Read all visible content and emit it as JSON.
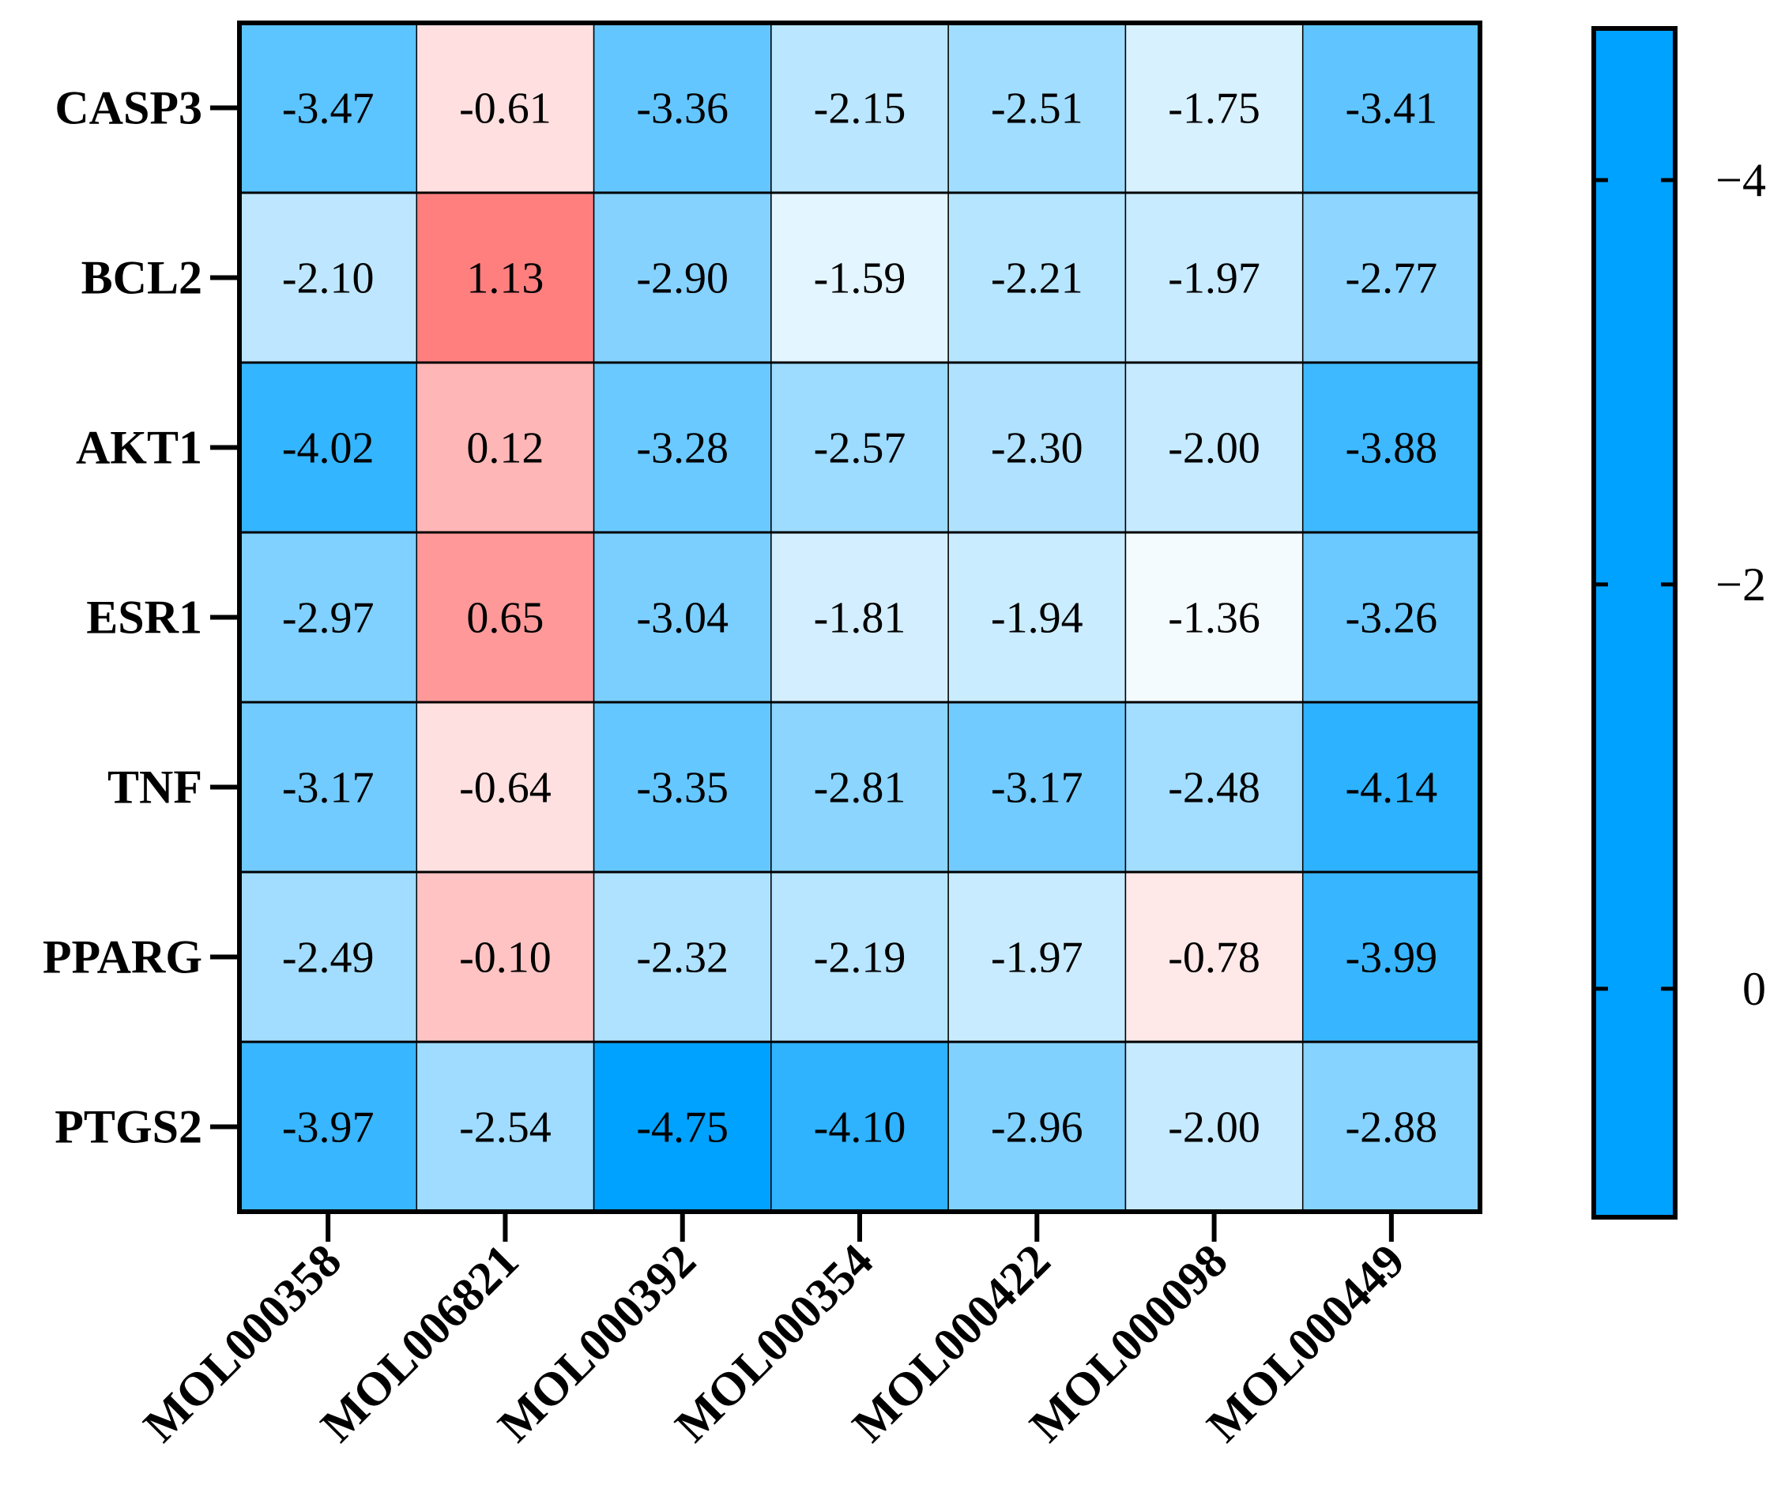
{
  "chart_data": {
    "type": "heatmap",
    "title": "",
    "xlabel": "",
    "ylabel": "",
    "rows": [
      "CASP3",
      "BCL2",
      "AKT1",
      "ESR1",
      "TNF",
      "PPARG",
      "PTGS2"
    ],
    "columns": [
      "MOL000358",
      "MOL006821",
      "MOL000392",
      "MOL000354",
      "MOL000422",
      "MOL000098",
      "MOL000449"
    ],
    "values": [
      [
        -3.47,
        -0.61,
        -3.36,
        -2.15,
        -2.51,
        -1.75,
        -3.41
      ],
      [
        -2.1,
        1.13,
        -2.9,
        -1.59,
        -2.21,
        -1.97,
        -2.77
      ],
      [
        -4.02,
        0.12,
        -3.28,
        -2.57,
        -2.3,
        -2.0,
        -3.88
      ],
      [
        -2.97,
        0.65,
        -3.04,
        -1.81,
        -1.94,
        -1.36,
        -3.26
      ],
      [
        -3.17,
        -0.64,
        -3.35,
        -2.81,
        -3.17,
        -2.48,
        -4.14
      ],
      [
        -2.49,
        -0.1,
        -2.32,
        -2.19,
        -1.97,
        -0.78,
        -3.99
      ],
      [
        -3.97,
        -2.54,
        -4.75,
        -4.1,
        -2.96,
        -2.0,
        -2.88
      ]
    ],
    "value_labels": [
      [
        "-3.47",
        "-0.61",
        "-3.36",
        "-2.15",
        "-2.51",
        "-1.75",
        "-3.41"
      ],
      [
        "-2.10",
        "1.13",
        "-2.90",
        "-1.59",
        "-2.21",
        "-1.97",
        "-2.77"
      ],
      [
        "-4.02",
        "0.12",
        "-3.28",
        "-2.57",
        "-2.30",
        "-2.00",
        "-3.88"
      ],
      [
        "-2.97",
        "0.65",
        "-3.04",
        "-1.81",
        "-1.94",
        "-1.36",
        "-3.26"
      ],
      [
        "-3.17",
        "-0.64",
        "-3.35",
        "-2.81",
        "-3.17",
        "-2.48",
        "-4.14"
      ],
      [
        "-2.49",
        "-0.10",
        "-2.32",
        "-2.19",
        "-1.97",
        "-0.78",
        "-3.99"
      ],
      [
        "-3.97",
        "-2.54",
        "-4.75",
        "-4.10",
        "-2.96",
        "-2.00",
        "-2.88"
      ]
    ],
    "colorbar": {
      "range": [
        -4.75,
        1.13
      ],
      "ticks": [
        -4,
        -2,
        0
      ],
      "tick_labels": [
        "−4",
        "−2",
        "0"
      ],
      "colors": [
        {
          "value": -4.75,
          "color": "#00a2ff"
        },
        {
          "value": -1.2,
          "color": "#ffffff"
        },
        {
          "value": 1.13,
          "color": "#ff7f7f"
        }
      ]
    }
  }
}
